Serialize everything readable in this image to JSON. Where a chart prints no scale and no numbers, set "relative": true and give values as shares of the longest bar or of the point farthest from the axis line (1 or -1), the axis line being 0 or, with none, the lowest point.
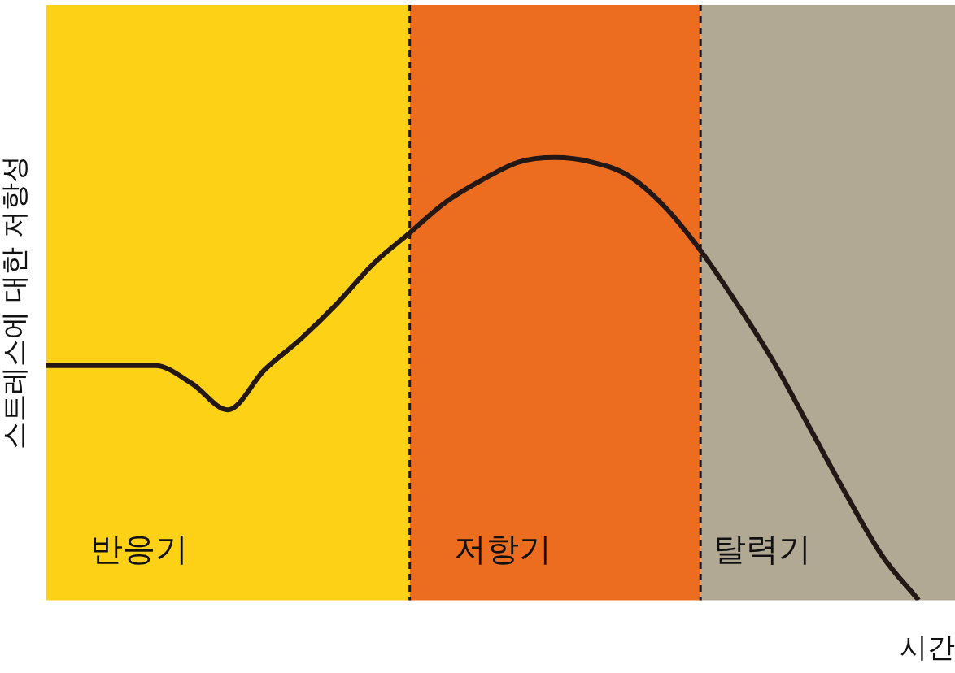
{
  "chart_data": {
    "type": "line",
    "relative": true,
    "ylabel": "스트레스에 대한 저항성",
    "xlabel": "시간",
    "categories": [
      null,
      null,
      null,
      null,
      null,
      null,
      null,
      null,
      null,
      null,
      null,
      null,
      null,
      null,
      null,
      null,
      null,
      null,
      null,
      null,
      null,
      null,
      null,
      null,
      null,
      null
    ],
    "series": [
      {
        "color": "#231815",
        "values": [
          0.53,
          0.53,
          0.53,
          0.53,
          0.49,
          0.43,
          0.52,
          0.59,
          0.67,
          0.76,
          0.83,
          0.9,
          0.95,
          0.99,
          1,
          0.99,
          0.96,
          0.89,
          0.79,
          0.67,
          0.54,
          0.39,
          0.24,
          0.1,
          0,
          null
        ]
      }
    ],
    "annotations": [
      "반응기",
      "저항기",
      "탈력기"
    ],
    "grid": false,
    "legend": false,
    "marker": "none",
    "line_style": "solid"
  }
}
